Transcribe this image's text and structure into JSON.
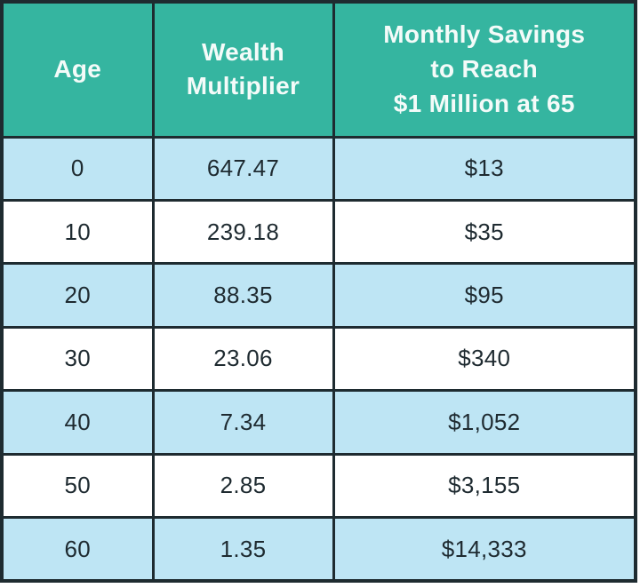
{
  "colors": {
    "header_bg": "#35B5A0",
    "header_text": "#FFFFFF",
    "row_alt_bg": "#BEE5F4",
    "row_bg": "#FFFFFF",
    "border": "#1E2B30",
    "body_text": "#1E2A30"
  },
  "table": {
    "header": [
      "Age",
      "Wealth\nMultiplier",
      "Monthly Savings\nto Reach\n$1 Million at 65"
    ],
    "rows": [
      [
        "0",
        "647.47",
        "$13"
      ],
      [
        "10",
        "239.18",
        "$35"
      ],
      [
        "20",
        "88.35",
        "$95"
      ],
      [
        "30",
        "23.06",
        "$340"
      ],
      [
        "40",
        "7.34",
        "$1,052"
      ],
      [
        "50",
        "2.85",
        "$3,155"
      ],
      [
        "60",
        "1.35",
        "$14,333"
      ]
    ]
  },
  "chart_data": {
    "type": "table",
    "title": "",
    "columns": [
      "Age",
      "Wealth Multiplier",
      "Monthly Savings to Reach $1 Million at 65"
    ],
    "rows": [
      [
        "0",
        "647.47",
        "$13"
      ],
      [
        "10",
        "239.18",
        "$35"
      ],
      [
        "20",
        "88.35",
        "$95"
      ],
      [
        "30",
        "23.06",
        "$340"
      ],
      [
        "40",
        "7.34",
        "$1,052"
      ],
      [
        "50",
        "2.85",
        "$3,155"
      ],
      [
        "60",
        "1.35",
        "$14,333"
      ]
    ],
    "layout_hints": {
      "header_background": "teal",
      "alternating_row_background": "light-blue/white",
      "grid": "on",
      "all_cells_centered": true
    }
  }
}
